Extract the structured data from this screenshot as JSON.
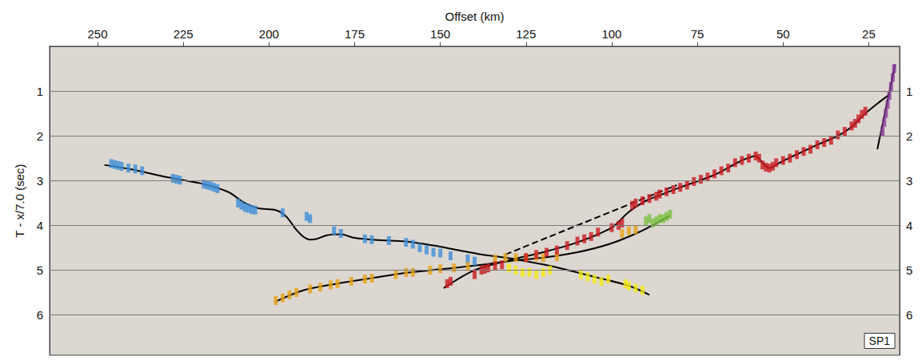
{
  "chart_data": {
    "type": "scatter",
    "x_label": "Offset (km)",
    "y_label": "T - x/7.0 (sec)",
    "annotations": [
      "SP1"
    ],
    "xlim": [
      264,
      16
    ],
    "xticks": [
      250,
      225,
      200,
      175,
      150,
      125,
      100,
      75,
      50,
      25
    ],
    "ylim": [
      6.9,
      0
    ],
    "yticks": [
      1,
      2,
      3,
      4,
      5,
      6
    ],
    "grid": true,
    "series": [
      {
        "type": "line",
        "color": "#000000",
        "line_style": "solid",
        "values": [
          [
            248,
            2.65
          ],
          [
            240,
            2.75
          ],
          [
            230,
            2.92
          ],
          [
            220,
            3.06
          ],
          [
            212,
            3.25
          ],
          [
            207,
            3.5
          ],
          [
            203,
            3.62
          ],
          [
            198,
            3.66
          ],
          [
            195,
            3.8
          ],
          [
            192,
            4.1
          ],
          [
            190,
            4.25
          ],
          [
            188,
            4.32
          ],
          [
            186,
            4.3
          ],
          [
            183,
            4.22
          ],
          [
            179,
            4.2
          ],
          [
            175,
            4.28
          ],
          [
            168,
            4.33
          ],
          [
            160,
            4.36
          ],
          [
            152,
            4.45
          ],
          [
            145,
            4.55
          ],
          [
            138,
            4.65
          ],
          [
            131,
            4.72
          ],
          [
            125,
            4.8
          ],
          [
            117,
            4.92
          ],
          [
            105,
            5.15
          ],
          [
            95,
            5.35
          ],
          [
            89,
            5.55
          ]
        ]
      },
      {
        "type": "line",
        "color": "#000000",
        "line_style": "solid",
        "values": [
          [
            198,
            5.7
          ],
          [
            190,
            5.45
          ],
          [
            180,
            5.3
          ],
          [
            170,
            5.18
          ],
          [
            160,
            5.06
          ],
          [
            150,
            4.98
          ],
          [
            140,
            4.9
          ],
          [
            130,
            4.8
          ],
          [
            120,
            4.72
          ],
          [
            110,
            4.6
          ],
          [
            100,
            4.4
          ],
          [
            92,
            4.15
          ],
          [
            87,
            3.95
          ],
          [
            83,
            3.78
          ]
        ]
      },
      {
        "type": "line",
        "color": "#000000",
        "line_style": "solid",
        "values": [
          [
            149,
            5.4
          ],
          [
            140,
            5.0
          ],
          [
            130,
            4.78
          ],
          [
            120,
            4.6
          ],
          [
            110,
            4.38
          ],
          [
            100,
            4.05
          ],
          [
            95,
            3.7
          ],
          [
            90,
            3.45
          ],
          [
            85,
            3.3
          ],
          [
            80,
            3.15
          ],
          [
            70,
            2.87
          ],
          [
            62,
            2.55
          ],
          [
            58,
            2.45
          ],
          [
            56,
            2.6
          ],
          [
            54,
            2.72
          ],
          [
            51,
            2.6
          ],
          [
            47,
            2.45
          ],
          [
            40,
            2.2
          ],
          [
            34,
            2.0
          ],
          [
            30,
            1.8
          ],
          [
            26,
            1.5
          ],
          [
            22,
            1.25
          ],
          [
            19,
            1.08
          ]
        ]
      },
      {
        "type": "line",
        "color": "#000000",
        "line_style": "dashed",
        "values": [
          [
            131,
            4.65
          ],
          [
            81,
            3.1
          ]
        ]
      },
      {
        "type": "line",
        "color": "#000000",
        "line_style": "solid",
        "values": [
          [
            22.5,
            2.3
          ],
          [
            17.3,
            0.4
          ]
        ]
      },
      {
        "type": "scatter",
        "color": "#3d8fd9",
        "marker": "rect",
        "values": [
          [
            246,
            2.62
          ],
          [
            245,
            2.64
          ],
          [
            244,
            2.66
          ],
          [
            243,
            2.68
          ],
          [
            241,
            2.72
          ],
          [
            239,
            2.74
          ],
          [
            237,
            2.78
          ],
          [
            228,
            2.95
          ],
          [
            227,
            2.97
          ],
          [
            226,
            2.99
          ],
          [
            219,
            3.08
          ],
          [
            218,
            3.1
          ],
          [
            217,
            3.12
          ],
          [
            216,
            3.15
          ],
          [
            215,
            3.18
          ],
          [
            209,
            3.5
          ],
          [
            208,
            3.55
          ],
          [
            207,
            3.6
          ],
          [
            206,
            3.62
          ],
          [
            205,
            3.65
          ],
          [
            204,
            3.66
          ],
          [
            196,
            3.72
          ],
          [
            189,
            3.8
          ],
          [
            188,
            3.85
          ],
          [
            181,
            4.12
          ],
          [
            179,
            4.18
          ],
          [
            172,
            4.3
          ],
          [
            170,
            4.32
          ],
          [
            165,
            4.34
          ],
          [
            160,
            4.38
          ],
          [
            158,
            4.42
          ],
          [
            156,
            4.5
          ],
          [
            154,
            4.55
          ],
          [
            152,
            4.6
          ],
          [
            150,
            4.62
          ],
          [
            147,
            4.68
          ],
          [
            142,
            4.75
          ],
          [
            140,
            4.8
          ]
        ]
      },
      {
        "type": "scatter",
        "color": "#e8a317",
        "marker": "rect",
        "values": [
          [
            198,
            5.68
          ],
          [
            196,
            5.62
          ],
          [
            194,
            5.55
          ],
          [
            192,
            5.5
          ],
          [
            188,
            5.42
          ],
          [
            185,
            5.38
          ],
          [
            182,
            5.33
          ],
          [
            180,
            5.3
          ],
          [
            176,
            5.25
          ],
          [
            172,
            5.2
          ],
          [
            170,
            5.18
          ],
          [
            163,
            5.1
          ],
          [
            160,
            5.05
          ],
          [
            158,
            5.05
          ],
          [
            153,
            5.0
          ],
          [
            150,
            4.97
          ],
          [
            146,
            4.95
          ],
          [
            142,
            4.92
          ],
          [
            134,
            4.75
          ],
          [
            131,
            4.72
          ],
          [
            128,
            4.72
          ],
          [
            125,
            4.72
          ],
          [
            122,
            4.7
          ],
          [
            120,
            4.72
          ],
          [
            116,
            4.7
          ],
          [
            97,
            4.18
          ],
          [
            95,
            4.12
          ],
          [
            93,
            4.1
          ]
        ]
      },
      {
        "type": "scatter",
        "color": "#f5ea14",
        "marker": "rect",
        "values": [
          [
            130,
            4.95
          ],
          [
            128,
            5.0
          ],
          [
            126,
            5.05
          ],
          [
            124,
            5.05
          ],
          [
            122,
            5.1
          ],
          [
            120,
            5.05
          ],
          [
            118,
            5.0
          ],
          [
            109,
            5.1
          ],
          [
            107,
            5.15
          ],
          [
            105,
            5.2
          ],
          [
            103,
            5.25
          ],
          [
            101,
            5.2
          ],
          [
            96,
            5.3
          ],
          [
            95,
            5.35
          ],
          [
            93,
            5.4
          ],
          [
            91,
            5.45
          ]
        ]
      },
      {
        "type": "scatter",
        "color": "#7cc242",
        "marker": "rect",
        "values": [
          [
            90,
            3.9
          ],
          [
            89,
            3.85
          ],
          [
            88,
            3.95
          ],
          [
            87,
            3.9
          ],
          [
            86,
            3.85
          ],
          [
            85,
            3.85
          ],
          [
            84,
            3.8
          ],
          [
            83,
            3.75
          ]
        ]
      },
      {
        "type": "scatter",
        "color": "#cc1b22",
        "marker": "rect",
        "values": [
          [
            148,
            5.3
          ],
          [
            147,
            5.25
          ],
          [
            140,
            5.1
          ],
          [
            138,
            5.0
          ],
          [
            137,
            4.98
          ],
          [
            136,
            4.95
          ],
          [
            134,
            4.9
          ],
          [
            132,
            4.88
          ],
          [
            125,
            4.72
          ],
          [
            122,
            4.65
          ],
          [
            119,
            4.6
          ],
          [
            116,
            4.55
          ],
          [
            113,
            4.45
          ],
          [
            110,
            4.35
          ],
          [
            108,
            4.3
          ],
          [
            106,
            4.25
          ],
          [
            104,
            4.15
          ],
          [
            100,
            4.05
          ],
          [
            98,
            4.0
          ],
          [
            97,
            3.95
          ],
          [
            94,
            3.55
          ],
          [
            93,
            3.5
          ],
          [
            91,
            3.45
          ],
          [
            89,
            3.4
          ],
          [
            87,
            3.35
          ],
          [
            86,
            3.3
          ],
          [
            84,
            3.25
          ],
          [
            82,
            3.2
          ],
          [
            80,
            3.15
          ],
          [
            78,
            3.1
          ],
          [
            76,
            3.02
          ],
          [
            74,
            2.97
          ],
          [
            72,
            2.92
          ],
          [
            70,
            2.85
          ],
          [
            68,
            2.78
          ],
          [
            66,
            2.72
          ],
          [
            64,
            2.6
          ],
          [
            62,
            2.55
          ],
          [
            60,
            2.5
          ],
          [
            58,
            2.45
          ],
          [
            57,
            2.5
          ],
          [
            56,
            2.65
          ],
          [
            55,
            2.7
          ],
          [
            54,
            2.72
          ],
          [
            53,
            2.68
          ],
          [
            52,
            2.6
          ],
          [
            50,
            2.55
          ],
          [
            48,
            2.5
          ],
          [
            46,
            2.42
          ],
          [
            44,
            2.35
          ],
          [
            42,
            2.3
          ],
          [
            40,
            2.2
          ],
          [
            38,
            2.15
          ],
          [
            36,
            2.1
          ],
          [
            34,
            1.98
          ],
          [
            32,
            1.9
          ],
          [
            30,
            1.78
          ],
          [
            29,
            1.72
          ],
          [
            28,
            1.62
          ],
          [
            27,
            1.52
          ],
          [
            26,
            1.45
          ]
        ]
      },
      {
        "type": "scatter",
        "color": "#8a3a9c",
        "marker": "rect",
        "values": [
          [
            21,
            1.9
          ],
          [
            20.5,
            1.7
          ],
          [
            20,
            1.5
          ],
          [
            19.5,
            1.3
          ],
          [
            19,
            1.1
          ],
          [
            18.5,
            0.9
          ],
          [
            18,
            0.7
          ],
          [
            17.6,
            0.5
          ]
        ]
      }
    ]
  }
}
